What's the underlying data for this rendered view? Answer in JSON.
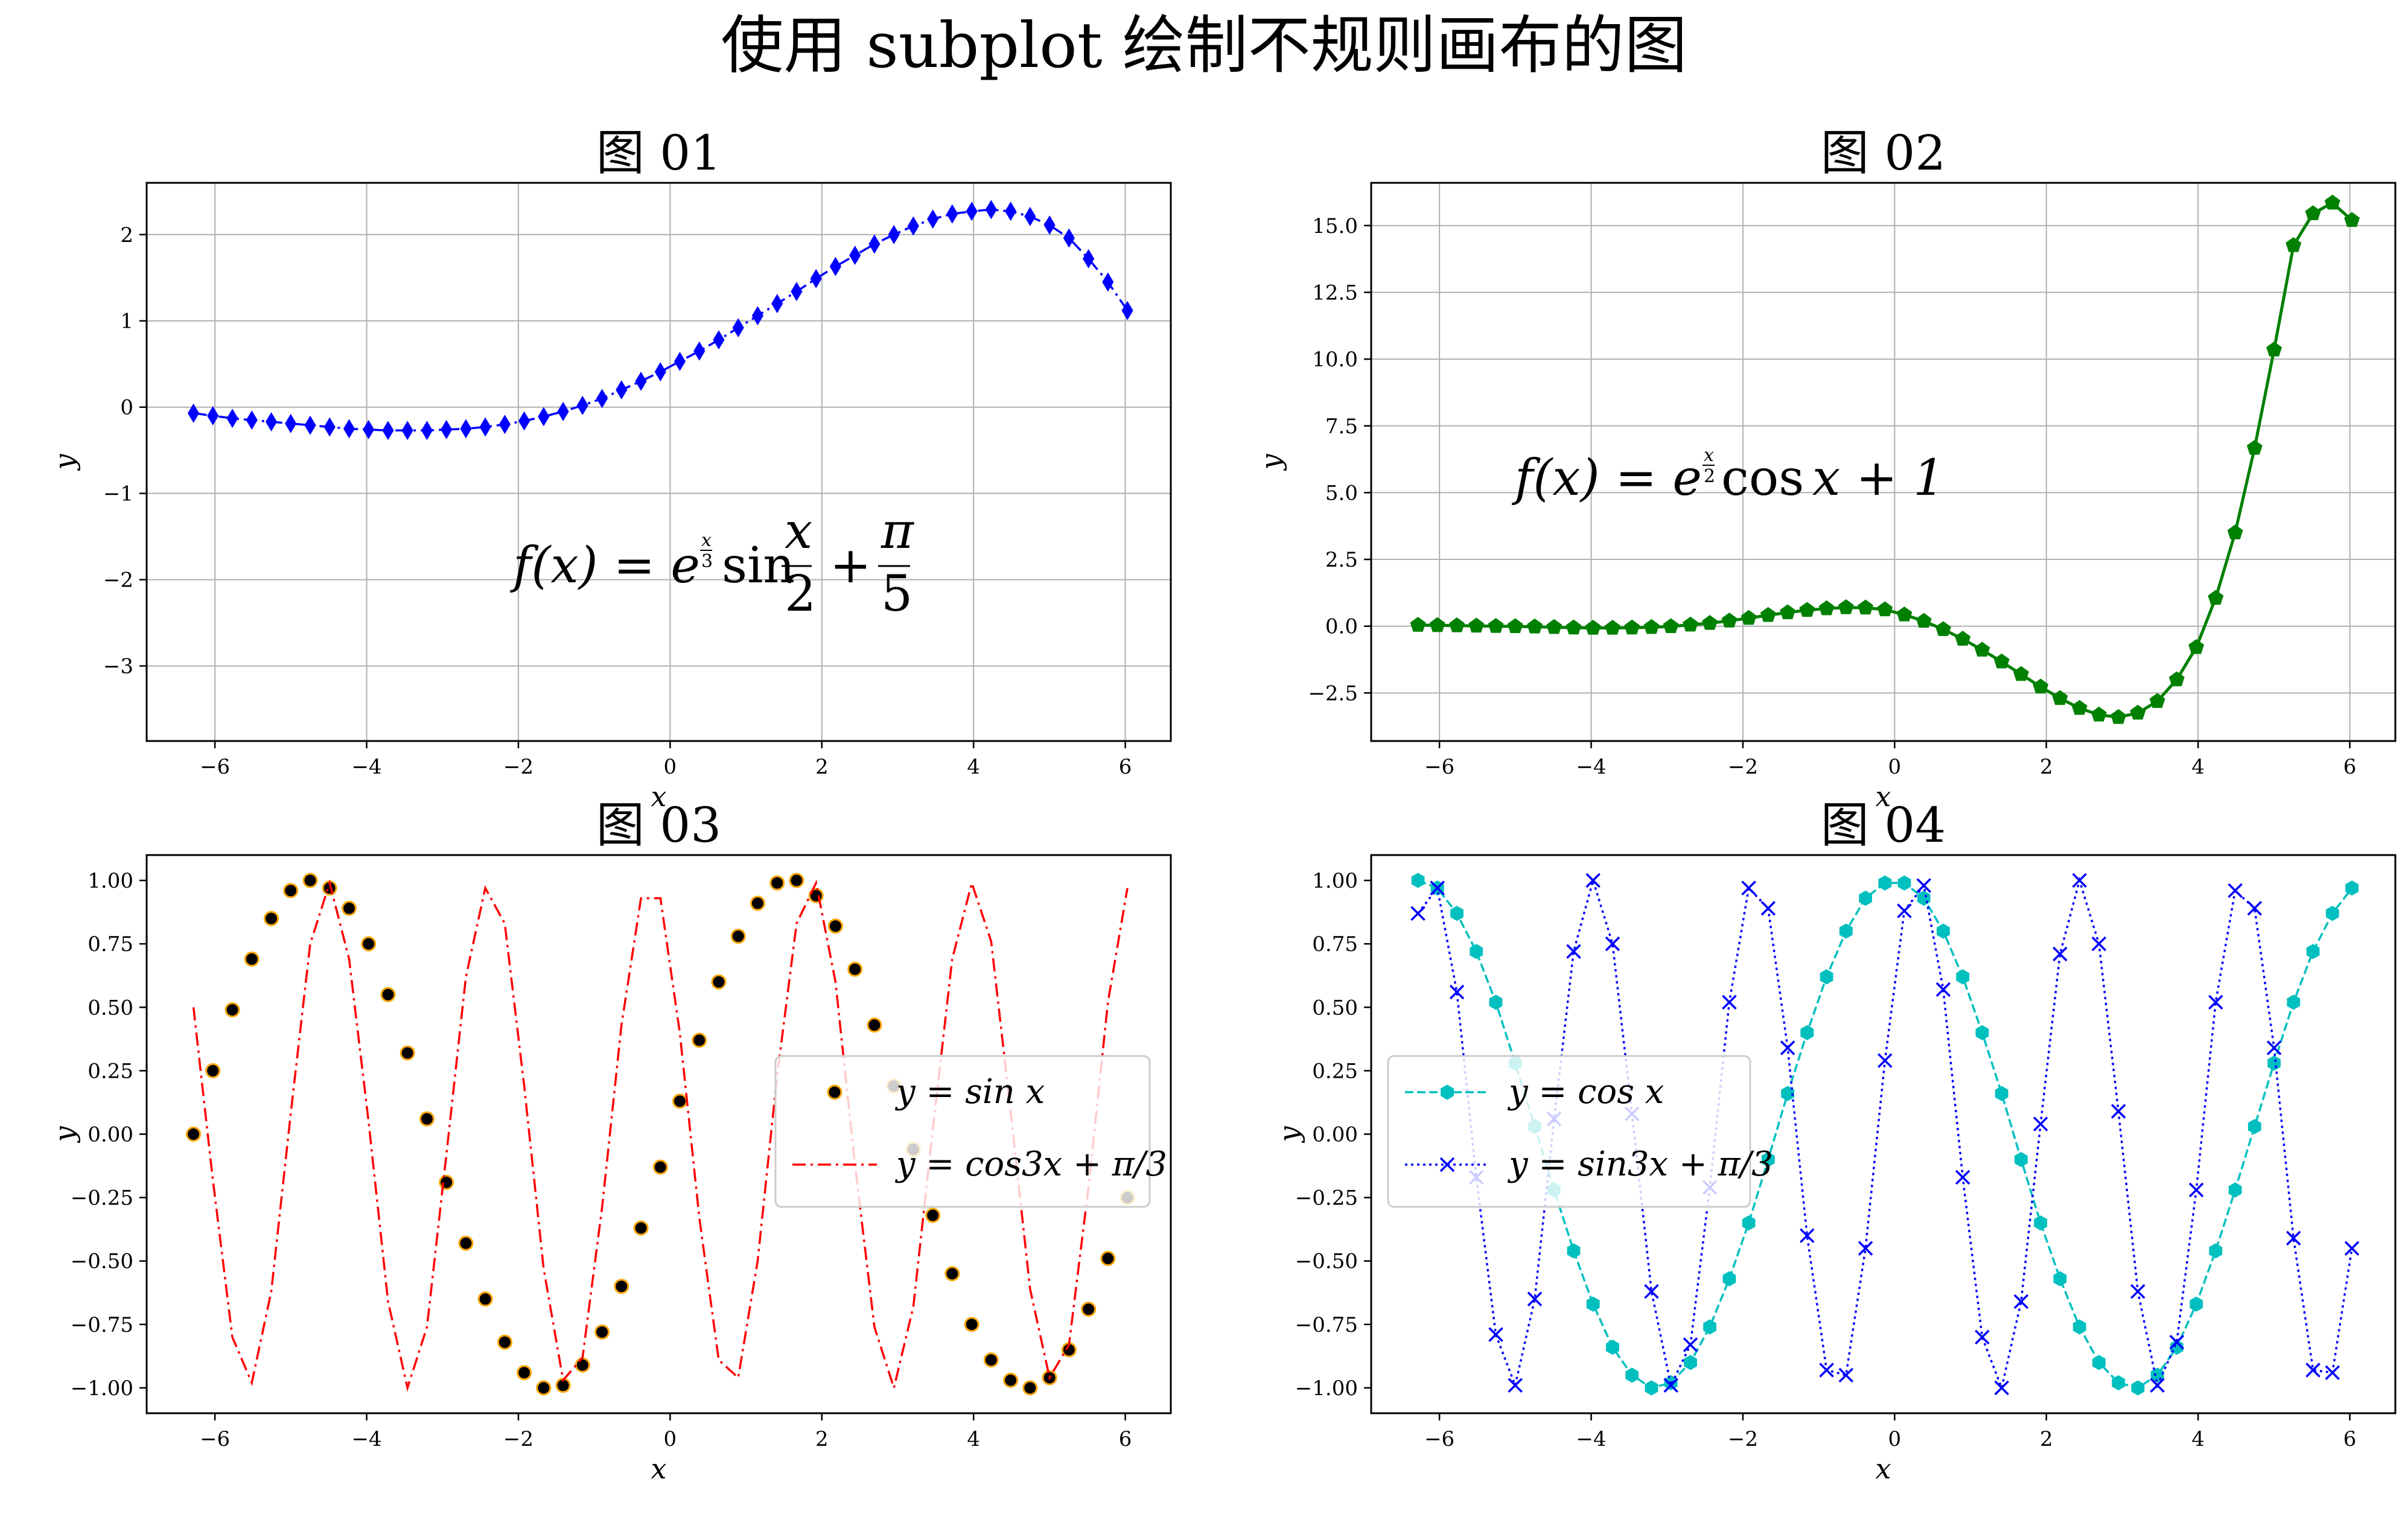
{
  "suptitle": "使用 subplot 绘制不规则画布的图",
  "chart_data": [
    {
      "id": "p1",
      "type": "line",
      "title": "图 01",
      "xlabel": "x",
      "ylabel": "y",
      "xlim": [
        -6.9,
        6.6
      ],
      "ylim": [
        -3.87,
        2.6
      ],
      "xticks": [
        -6,
        -4,
        -2,
        0,
        2,
        4,
        6
      ],
      "xtick_labels": [
        "−6",
        "−4",
        "−2",
        "0",
        "2",
        "4",
        "6"
      ],
      "yticks": [
        -3,
        -2,
        -1,
        0,
        1,
        2
      ],
      "ytick_labels": [
        "−3",
        "−2",
        "−1",
        "0",
        "1",
        "2"
      ],
      "grid": true,
      "annotation": "f(x) = e^(x/3) sin(x/2) + π/5",
      "series": [
        {
          "color": "#0000ff",
          "linestyle": "dashdot",
          "marker": "diamond",
          "x": [
            -6.283,
            -6.027,
            -5.77,
            -5.514,
            -5.257,
            -5.001,
            -4.744,
            -4.488,
            -4.231,
            -3.975,
            -3.718,
            -3.462,
            -3.205,
            -2.949,
            -2.692,
            -2.436,
            -2.179,
            -1.923,
            -1.667,
            -1.41,
            -1.154,
            -0.897,
            -0.641,
            -0.384,
            -0.128,
            0.128,
            0.385,
            0.641,
            0.898,
            1.154,
            1.411,
            1.667,
            1.924,
            2.18,
            2.437,
            2.693,
            2.95,
            3.206,
            3.463,
            3.719,
            3.976,
            4.232,
            4.489,
            4.745,
            5.002,
            5.258,
            5.515,
            5.771,
            6.028
          ],
          "y": [
            -0.07,
            -0.1,
            -0.13,
            -0.15,
            -0.17,
            -0.19,
            -0.21,
            -0.23,
            -0.25,
            -0.26,
            -0.27,
            -0.27,
            -0.27,
            -0.26,
            -0.25,
            -0.23,
            -0.2,
            -0.16,
            -0.11,
            -0.05,
            0.02,
            0.1,
            0.2,
            0.3,
            0.41,
            0.53,
            0.65,
            0.78,
            0.92,
            1.06,
            1.2,
            1.34,
            1.49,
            1.63,
            1.76,
            1.89,
            2.0,
            2.1,
            2.18,
            2.24,
            2.27,
            2.29,
            2.27,
            2.21,
            2.11,
            1.96,
            1.72,
            1.45,
            1.12
          ]
        }
      ]
    },
    {
      "id": "p2",
      "type": "line",
      "title": "图 02",
      "xlabel": "x",
      "ylabel": "y",
      "xlim": [
        -6.9,
        6.6
      ],
      "ylim": [
        -4.3,
        16.6
      ],
      "xticks": [
        -6,
        -4,
        -2,
        0,
        2,
        4,
        6
      ],
      "xtick_labels": [
        "−6",
        "−4",
        "−2",
        "0",
        "2",
        "4",
        "6"
      ],
      "yticks": [
        -2.5,
        0,
        2.5,
        5,
        7.5,
        10,
        12.5,
        15
      ],
      "ytick_labels": [
        "−2.5",
        "0.0",
        "2.5",
        "5.0",
        "7.5",
        "10.0",
        "12.5",
        "15.0"
      ],
      "grid": true,
      "annotation": "f(x) = e^(x/2) cos x + 1",
      "series": [
        {
          "color": "#008000",
          "linestyle": "solid",
          "marker": "pentagon",
          "x": [
            -6.283,
            -6.027,
            -5.77,
            -5.514,
            -5.257,
            -5.001,
            -4.744,
            -4.488,
            -4.231,
            -3.975,
            -3.718,
            -3.462,
            -3.205,
            -2.949,
            -2.692,
            -2.436,
            -2.179,
            -1.923,
            -1.667,
            -1.41,
            -1.154,
            -0.897,
            -0.641,
            -0.384,
            -0.128,
            0.128,
            0.385,
            0.641,
            0.898,
            1.154,
            1.411,
            1.667,
            1.924,
            2.18,
            2.437,
            2.693,
            2.95,
            3.206,
            3.463,
            3.719,
            3.976,
            4.232,
            4.489,
            4.745,
            5.002,
            5.258,
            5.515,
            5.771,
            6.028
          ],
          "y": [
            0.04,
            0.03,
            0.02,
            0.01,
            0.0,
            -0.01,
            -0.02,
            -0.04,
            -0.06,
            -0.07,
            -0.07,
            -0.06,
            -0.04,
            -0.01,
            0.05,
            0.11,
            0.2,
            0.3,
            0.41,
            0.51,
            0.6,
            0.66,
            0.7,
            0.69,
            0.62,
            0.43,
            0.19,
            -0.12,
            -0.48,
            -0.89,
            -1.33,
            -1.8,
            -2.27,
            -2.7,
            -3.07,
            -3.32,
            -3.41,
            -3.25,
            -2.81,
            -2.0,
            -0.79,
            1.05,
            3.5,
            6.67,
            10.35,
            14.26,
            15.45,
            15.85,
            15.2
          ]
        }
      ]
    },
    {
      "id": "p3",
      "type": "line",
      "title": "图 03",
      "xlabel": "x",
      "ylabel": "y",
      "xlim": [
        -6.9,
        6.6
      ],
      "ylim": [
        -1.1,
        1.1
      ],
      "xticks": [
        -6,
        -4,
        -2,
        0,
        2,
        4,
        6
      ],
      "xtick_labels": [
        "−6",
        "−4",
        "−2",
        "0",
        "2",
        "4",
        "6"
      ],
      "yticks": [
        -1,
        -0.75,
        -0.5,
        -0.25,
        0,
        0.25,
        0.5,
        0.75,
        1
      ],
      "ytick_labels": [
        "−1.00",
        "−0.75",
        "−0.50",
        "−0.25",
        "0.00",
        "0.25",
        "0.50",
        "0.75",
        "1.00"
      ],
      "grid": false,
      "legend_position": "center-right",
      "series": [
        {
          "name": "y = sin x",
          "color": "#000000",
          "edgecolor": "#ffa500",
          "linestyle": "none",
          "marker": "circle",
          "x": [
            -6.283,
            -6.027,
            -5.77,
            -5.514,
            -5.257,
            -5.001,
            -4.744,
            -4.488,
            -4.231,
            -3.975,
            -3.718,
            -3.462,
            -3.205,
            -2.949,
            -2.692,
            -2.436,
            -2.179,
            -1.923,
            -1.667,
            -1.41,
            -1.154,
            -0.897,
            -0.641,
            -0.384,
            -0.128,
            0.128,
            0.385,
            0.641,
            0.898,
            1.154,
            1.411,
            1.667,
            1.924,
            2.18,
            2.437,
            2.693,
            2.95,
            3.206,
            3.463,
            3.719,
            3.976,
            4.232,
            4.489,
            4.745,
            5.002,
            5.258,
            5.515,
            5.771,
            6.028
          ],
          "y": [
            0.0,
            0.25,
            0.49,
            0.69,
            0.85,
            0.96,
            1.0,
            0.97,
            0.89,
            0.75,
            0.55,
            0.32,
            0.06,
            -0.19,
            -0.43,
            -0.65,
            -0.82,
            -0.94,
            -1.0,
            -0.99,
            -0.91,
            -0.78,
            -0.6,
            -0.37,
            -0.13,
            0.13,
            0.37,
            0.6,
            0.78,
            0.91,
            0.99,
            1.0,
            0.94,
            0.82,
            0.65,
            0.43,
            0.19,
            -0.06,
            -0.32,
            -0.55,
            -0.75,
            -0.89,
            -0.97,
            -1.0,
            -0.96,
            -0.85,
            -0.69,
            -0.49,
            -0.25
          ]
        },
        {
          "name": "y = cos3x + π/3",
          "color": "#ff0000",
          "linestyle": "dashdot",
          "marker": "none",
          "x": [
            -6.283,
            -6.027,
            -5.77,
            -5.514,
            -5.257,
            -5.001,
            -4.744,
            -4.488,
            -4.231,
            -3.975,
            -3.718,
            -3.462,
            -3.205,
            -2.949,
            -2.692,
            -2.436,
            -2.179,
            -1.923,
            -1.667,
            -1.41,
            -1.154,
            -0.897,
            -0.641,
            -0.384,
            -0.128,
            0.128,
            0.385,
            0.641,
            0.898,
            1.154,
            1.411,
            1.667,
            1.924,
            2.18,
            2.437,
            2.693,
            2.95,
            3.206,
            3.463,
            3.719,
            3.976,
            4.232,
            4.489,
            4.745,
            5.002,
            5.258,
            5.515,
            5.771,
            6.028
          ],
          "y": [
            0.5,
            -0.18,
            -0.8,
            -0.98,
            -0.62,
            0.08,
            0.75,
            0.99,
            0.69,
            0.05,
            -0.66,
            -1.0,
            -0.76,
            -0.08,
            0.62,
            0.97,
            0.83,
            0.19,
            -0.53,
            -0.97,
            -0.88,
            -0.29,
            0.43,
            0.93,
            0.93,
            0.4,
            -0.33,
            -0.89,
            -0.96,
            -0.5,
            0.23,
            0.83,
            0.99,
            0.6,
            -0.12,
            -0.76,
            -1.0,
            -0.68,
            0.02,
            0.69,
            0.99,
            0.76,
            0.09,
            -0.61,
            -0.96,
            -0.83,
            -0.21,
            0.52,
            0.97
          ]
        }
      ]
    },
    {
      "id": "p4",
      "type": "line",
      "title": "图 04",
      "xlabel": "x",
      "ylabel": "y",
      "xlim": [
        -6.9,
        6.6
      ],
      "ylim": [
        -1.1,
        1.1
      ],
      "xticks": [
        -6,
        -4,
        -2,
        0,
        2,
        4,
        6
      ],
      "xtick_labels": [
        "−6",
        "−4",
        "−2",
        "0",
        "2",
        "4",
        "6"
      ],
      "yticks": [
        -1,
        -0.75,
        -0.5,
        -0.25,
        0,
        0.25,
        0.5,
        0.75,
        1
      ],
      "ytick_labels": [
        "−1.00",
        "−0.75",
        "−0.50",
        "−0.25",
        "0.00",
        "0.25",
        "0.50",
        "0.75",
        "1.00"
      ],
      "grid": false,
      "legend_position": "center-left",
      "series": [
        {
          "name": "y = cos x",
          "color": "#00bfbf",
          "linestyle": "dashed",
          "marker": "hexagon",
          "x": [
            -6.283,
            -6.027,
            -5.77,
            -5.514,
            -5.257,
            -5.001,
            -4.744,
            -4.488,
            -4.231,
            -3.975,
            -3.718,
            -3.462,
            -3.205,
            -2.949,
            -2.692,
            -2.436,
            -2.179,
            -1.923,
            -1.667,
            -1.41,
            -1.154,
            -0.897,
            -0.641,
            -0.384,
            -0.128,
            0.128,
            0.385,
            0.641,
            0.898,
            1.154,
            1.411,
            1.667,
            1.924,
            2.18,
            2.437,
            2.693,
            2.95,
            3.206,
            3.463,
            3.719,
            3.976,
            4.232,
            4.489,
            4.745,
            5.002,
            5.258,
            5.515,
            5.771,
            6.028
          ],
          "y": [
            1.0,
            0.97,
            0.87,
            0.72,
            0.52,
            0.28,
            0.03,
            -0.22,
            -0.46,
            -0.67,
            -0.84,
            -0.95,
            -1.0,
            -0.98,
            -0.9,
            -0.76,
            -0.57,
            -0.35,
            -0.1,
            0.16,
            0.4,
            0.62,
            0.8,
            0.93,
            0.99,
            0.99,
            0.93,
            0.8,
            0.62,
            0.4,
            0.16,
            -0.1,
            -0.35,
            -0.57,
            -0.76,
            -0.9,
            -0.98,
            -1.0,
            -0.95,
            -0.84,
            -0.67,
            -0.46,
            -0.22,
            0.03,
            0.28,
            0.52,
            0.72,
            0.87,
            0.97
          ]
        },
        {
          "name": "y = sin3x + π/3",
          "color": "#0000ff",
          "linestyle": "dotted",
          "marker": "x",
          "x": [
            -6.283,
            -6.027,
            -5.77,
            -5.514,
            -5.257,
            -5.001,
            -4.744,
            -4.488,
            -4.231,
            -3.975,
            -3.718,
            -3.462,
            -3.205,
            -2.949,
            -2.692,
            -2.436,
            -2.179,
            -1.923,
            -1.667,
            -1.41,
            -1.154,
            -0.897,
            -0.641,
            -0.384,
            -0.128,
            0.128,
            0.385,
            0.641,
            0.898,
            1.154,
            1.411,
            1.667,
            1.924,
            2.18,
            2.437,
            2.693,
            2.95,
            3.206,
            3.463,
            3.719,
            3.976,
            4.232,
            4.489,
            4.745,
            5.002,
            5.258,
            5.515,
            5.771,
            6.028
          ],
          "y": [
            0.87,
            0.97,
            0.56,
            -0.17,
            -0.79,
            -0.99,
            -0.65,
            0.06,
            0.72,
            1.0,
            0.75,
            0.08,
            -0.62,
            -0.99,
            -0.83,
            -0.21,
            0.52,
            0.97,
            0.89,
            0.34,
            -0.4,
            -0.93,
            -0.95,
            -0.45,
            0.29,
            0.88,
            0.98,
            0.57,
            -0.17,
            -0.8,
            -1.0,
            -0.66,
            0.04,
            0.71,
            1.0,
            0.75,
            0.09,
            -0.62,
            -0.99,
            -0.82,
            -0.22,
            0.52,
            0.96,
            0.89,
            0.34,
            -0.41,
            -0.93,
            -0.94,
            -0.45
          ]
        }
      ]
    }
  ]
}
